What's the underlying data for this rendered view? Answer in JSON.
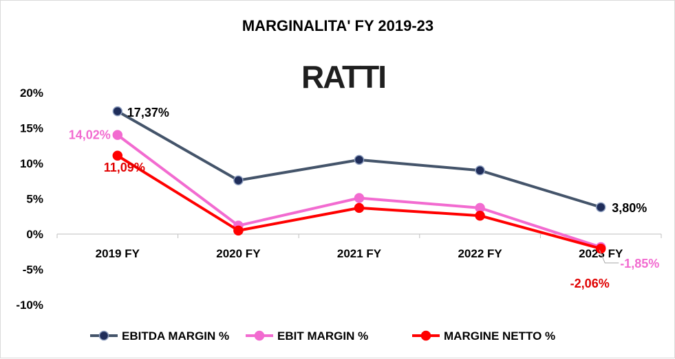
{
  "chart_data": {
    "type": "line",
    "title": "MARGINALITA' FY 2019-23",
    "logo": "RATTI",
    "categories": [
      "2019 FY",
      "2020 FY",
      "2021 FY",
      "2022 FY",
      "2023 FY"
    ],
    "ylim": [
      -10,
      20
    ],
    "yticks": [
      -10,
      -5,
      0,
      5,
      10,
      15,
      20
    ],
    "ytick_labels": [
      "-10%",
      "-5%",
      "0%",
      "5%",
      "10%",
      "15%",
      "20%"
    ],
    "grid": false,
    "legend_position": "bottom",
    "series": [
      {
        "name": "EBITDA MARGIN %",
        "color": "#44546a",
        "marker_color": "#1f2d5a",
        "values": [
          17.37,
          7.6,
          10.5,
          9.0,
          3.8
        ],
        "data_labels": [
          "17,37%",
          "",
          "",
          "",
          "3,80%"
        ],
        "label_color": "#000000"
      },
      {
        "name": "EBIT MARGIN %",
        "color": "#f26bd0",
        "marker_color": "#f26bd0",
        "values": [
          14.02,
          1.2,
          5.1,
          3.7,
          -1.85
        ],
        "data_labels": [
          "14,02%",
          "",
          "",
          "",
          "-1,85%"
        ],
        "label_color": "#f26bd0"
      },
      {
        "name": "MARGINE NETTO %",
        "color": "#ff0000",
        "marker_color": "#ff0000",
        "values": [
          11.09,
          0.5,
          3.7,
          2.6,
          -2.06
        ],
        "data_labels": [
          "11,09%",
          "",
          "",
          "",
          "-2,06%"
        ],
        "label_color": "#e00000"
      }
    ]
  }
}
